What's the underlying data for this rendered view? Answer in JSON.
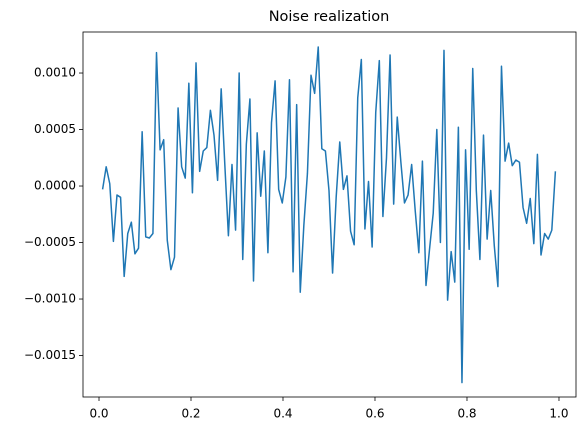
{
  "chart_data": {
    "type": "line",
    "title": "Noise realization",
    "x": [
      0.0078,
      0.0156,
      0.0234,
      0.0313,
      0.0391,
      0.0469,
      0.0547,
      0.0625,
      0.0703,
      0.0781,
      0.0859,
      0.0938,
      0.1016,
      0.1094,
      0.1172,
      0.125,
      0.1328,
      0.1406,
      0.1484,
      0.1563,
      0.1641,
      0.1719,
      0.1797,
      0.1875,
      0.1953,
      0.2031,
      0.2109,
      0.2188,
      0.2266,
      0.2344,
      0.2422,
      0.25,
      0.2578,
      0.2656,
      0.2734,
      0.2813,
      0.2891,
      0.2969,
      0.3047,
      0.3125,
      0.3203,
      0.3281,
      0.3359,
      0.3438,
      0.3516,
      0.3594,
      0.3672,
      0.375,
      0.3828,
      0.3906,
      0.3984,
      0.4063,
      0.4141,
      0.4219,
      0.4297,
      0.4375,
      0.4453,
      0.4531,
      0.4609,
      0.4688,
      0.4766,
      0.4844,
      0.4922,
      0.5,
      0.5078,
      0.5156,
      0.5234,
      0.5313,
      0.5391,
      0.5469,
      0.5547,
      0.5625,
      0.5703,
      0.5781,
      0.5859,
      0.5938,
      0.6016,
      0.6094,
      0.6172,
      0.625,
      0.6328,
      0.6406,
      0.6484,
      0.6563,
      0.6641,
      0.6719,
      0.6797,
      0.6875,
      0.6953,
      0.7031,
      0.7109,
      0.7188,
      0.7266,
      0.7344,
      0.7422,
      0.75,
      0.7578,
      0.7656,
      0.7734,
      0.7813,
      0.7891,
      0.7969,
      0.8047,
      0.8125,
      0.8203,
      0.8281,
      0.8359,
      0.8438,
      0.8516,
      0.8594,
      0.8672,
      0.875,
      0.8828,
      0.8906,
      0.8984,
      0.9063,
      0.9141,
      0.9219,
      0.9297,
      0.9375,
      0.9453,
      0.9531,
      0.9609,
      0.9688,
      0.9766,
      0.9844,
      0.9922
    ],
    "series": [
      {
        "color": "#1f77b4",
        "values": [
          -3e-05,
          0.00017,
          2e-05,
          -0.00049,
          -8e-05,
          -0.0001,
          -0.0008,
          -0.00042,
          -0.00032,
          -0.0006,
          -0.00055,
          0.00048,
          -0.00045,
          -0.00046,
          -0.00042,
          0.00118,
          0.00032,
          0.00041,
          -0.00048,
          -0.00074,
          -0.00063,
          0.00069,
          0.00017,
          7e-05,
          0.00091,
          -6e-05,
          0.00109,
          0.00013,
          0.00031,
          0.00034,
          0.00067,
          0.00045,
          5e-05,
          0.00086,
          0.0002,
          -0.00044,
          0.00019,
          -0.00039,
          0.001,
          -0.00065,
          0.00037,
          0.00077,
          -0.00084,
          0.00047,
          -9e-05,
          0.00031,
          -0.00059,
          0.00056,
          0.00093,
          -3e-05,
          -0.00015,
          8e-05,
          0.00094,
          -0.00076,
          0.00072,
          -0.00094,
          -0.00035,
          0.00011,
          0.00098,
          0.00082,
          0.00123,
          0.00033,
          0.00031,
          -4e-05,
          -0.00077,
          -0.0001,
          0.00039,
          -3e-05,
          9e-05,
          -0.0004,
          -0.00052,
          0.00078,
          0.00112,
          -0.00038,
          4e-05,
          -0.00054,
          0.00065,
          0.00111,
          -0.00027,
          0.00025,
          0.00116,
          -0.00016,
          0.00061,
          0.00021,
          -0.00015,
          -8e-05,
          0.00019,
          -0.00022,
          -0.00059,
          0.00022,
          -0.00088,
          -0.00055,
          -0.00024,
          0.0005,
          -0.0005,
          0.0012,
          -0.00101,
          -0.00058,
          -0.00085,
          0.00052,
          -0.00174,
          0.00032,
          -0.00056,
          0.00104,
          -4e-05,
          -0.00065,
          0.00045,
          -0.00047,
          -4e-05,
          -0.00053,
          -0.00089,
          0.00106,
          0.00022,
          0.00038,
          0.00018,
          0.00023,
          0.00021,
          -0.00019,
          -0.00033,
          -0.00011,
          -0.00051,
          0.00028,
          -0.00061,
          -0.00042,
          -0.00047,
          -0.00039,
          0.00013
        ]
      }
    ],
    "xlim": [
      -0.0348,
      1.037
    ],
    "ylim": [
      -0.001867,
      0.001363
    ],
    "xticks": [
      {
        "value": 0,
        "label": "0.0"
      },
      0.2,
      0.4,
      0.6,
      0.8,
      {
        "value": 1,
        "label": "1.0"
      }
    ],
    "yticks": [
      {
        "value": -0.0015,
        "label": "−0.0015"
      },
      {
        "value": -0.001,
        "label": "−0.0010"
      },
      {
        "value": -0.0005,
        "label": "−0.0005"
      },
      {
        "value": 0,
        "label": "0.0000"
      },
      {
        "value": 0.0005,
        "label": "0.0005"
      },
      {
        "value": 0.001,
        "label": "0.0010"
      }
    ],
    "grid": false
  }
}
